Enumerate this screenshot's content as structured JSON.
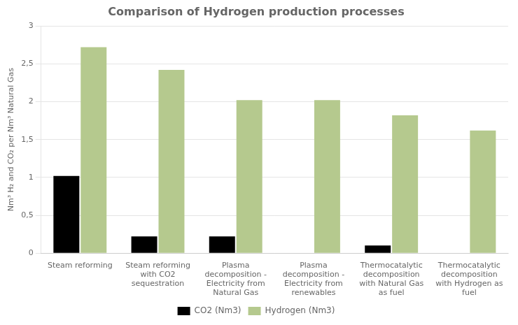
{
  "chart_data": {
    "type": "bar",
    "title": "Comparison of Hydrogen production processes",
    "y_label": "Nm³ H₂ and CO₂ per Nm³ Natural Gas",
    "categories": [
      "Steam reforming",
      "Steam reforming\nwith CO2\nsequestration",
      "Plasma\ndecomposition -\nElectricity from\nNatural Gas",
      "Plasma\ndecomposition -\nElectricity from\nrenewables",
      "Thermocatalytic\ndecomposition\nwith Natural Gas\nas fuel",
      "Thermocatalytic\ndecomposition\nwith Hydrogen as\nfuel"
    ],
    "series": [
      {
        "name": "CO2 (Nm3)",
        "color": "#000000",
        "values": [
          1.02,
          0.22,
          0.22,
          0.0,
          0.1,
          0.0
        ]
      },
      {
        "name": "Hydrogen (Nm3)",
        "color": "#b5c98e",
        "values": [
          2.72,
          2.42,
          2.02,
          2.02,
          1.82,
          1.62
        ]
      }
    ],
    "ylim": [
      0,
      3
    ],
    "yticks": [
      0,
      {
        "value": 0.5,
        "label": "0,5"
      },
      1,
      {
        "value": 1.5,
        "label": "1,5"
      },
      2,
      {
        "value": 2.5,
        "label": "2,5"
      },
      3
    ],
    "grid": true,
    "legend": "bottom"
  }
}
